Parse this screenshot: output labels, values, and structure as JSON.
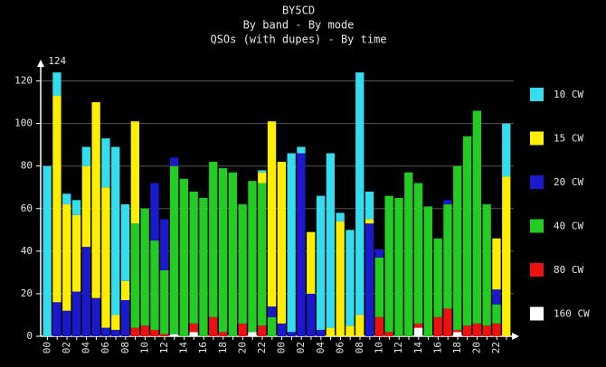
{
  "chart_data": {
    "type": "stacked-bar",
    "title": "BY5CD",
    "subtitle": "By band - By mode",
    "subtitle2": "QSOs (with dupes) - By time",
    "annotation": "124",
    "categories": [
      "00",
      null,
      "02",
      null,
      "04",
      null,
      "06",
      null,
      "08",
      null,
      "10",
      null,
      "12",
      null,
      "14",
      null,
      "16",
      null,
      "18",
      null,
      "20",
      null,
      "22",
      null,
      "00",
      null,
      "02",
      null,
      "04",
      null,
      "06",
      null,
      "08",
      null,
      "10",
      null,
      "12",
      null,
      "14",
      null,
      "16",
      null,
      "18",
      null,
      "20",
      null,
      "22",
      null
    ],
    "series": [
      {
        "name": "160 CW",
        "color": "#ffffff",
        "values": [
          0,
          0,
          0,
          0,
          0,
          0,
          0,
          0,
          0,
          0,
          0,
          0,
          0,
          1,
          0,
          2,
          0,
          0,
          0,
          0,
          0,
          2,
          0,
          0,
          0,
          0,
          0,
          0,
          0,
          0,
          0,
          0,
          0,
          0,
          0,
          0,
          0,
          0,
          4,
          0,
          0,
          0,
          2,
          0,
          0,
          0,
          0,
          0
        ]
      },
      {
        "name": "80 CW",
        "color": "#ee1111",
        "values": [
          0,
          0,
          0,
          0,
          0,
          0,
          0,
          0,
          0,
          4,
          5,
          3,
          1,
          0,
          0,
          4,
          0,
          9,
          2,
          0,
          6,
          0,
          5,
          0,
          0,
          0,
          0,
          0,
          0,
          0,
          0,
          0,
          0,
          0,
          9,
          2,
          0,
          0,
          2,
          0,
          9,
          13,
          1,
          5,
          6,
          5,
          6,
          0
        ]
      },
      {
        "name": "40 CW",
        "color": "#22cc22",
        "values": [
          0,
          0,
          0,
          0,
          0,
          0,
          0,
          0,
          0,
          49,
          55,
          42,
          30,
          79,
          74,
          62,
          65,
          73,
          77,
          77,
          56,
          71,
          67,
          9,
          0,
          0,
          0,
          0,
          0,
          0,
          0,
          0,
          0,
          0,
          28,
          64,
          65,
          77,
          66,
          61,
          37,
          49,
          77,
          89,
          100,
          57,
          9,
          0
        ]
      },
      {
        "name": "20 CW",
        "color": "#1a1acc",
        "values": [
          0,
          16,
          12,
          21,
          42,
          18,
          4,
          3,
          17,
          0,
          0,
          27,
          24,
          4,
          0,
          0,
          0,
          0,
          0,
          0,
          0,
          0,
          0,
          5,
          6,
          2,
          86,
          20,
          3,
          0,
          0,
          0,
          0,
          53,
          4,
          0,
          0,
          0,
          0,
          0,
          0,
          2,
          0,
          0,
          0,
          0,
          7,
          0
        ]
      },
      {
        "name": "15 CW",
        "color": "#ffee00",
        "values": [
          0,
          97,
          50,
          36,
          38,
          92,
          66,
          7,
          9,
          48,
          0,
          0,
          0,
          0,
          0,
          0,
          0,
          0,
          0,
          0,
          0,
          0,
          5,
          87,
          76,
          0,
          0,
          29,
          0,
          4,
          54,
          5,
          10,
          2,
          0,
          0,
          0,
          0,
          0,
          0,
          0,
          0,
          0,
          0,
          0,
          0,
          24,
          75
        ]
      },
      {
        "name": "10 CW",
        "color": "#33ddee",
        "values": [
          80,
          11,
          5,
          7,
          9,
          0,
          23,
          79,
          36,
          0,
          0,
          0,
          0,
          0,
          0,
          0,
          0,
          0,
          0,
          0,
          0,
          0,
          1,
          0,
          0,
          84,
          3,
          0,
          63,
          82,
          4,
          45,
          114,
          13,
          0,
          0,
          0,
          0,
          0,
          0,
          0,
          0,
          0,
          0,
          0,
          0,
          0,
          25
        ]
      }
    ],
    "ylim": [
      0,
      130
    ],
    "yticks": [
      0,
      20,
      40,
      60,
      80,
      100,
      120
    ],
    "grid": true
  }
}
